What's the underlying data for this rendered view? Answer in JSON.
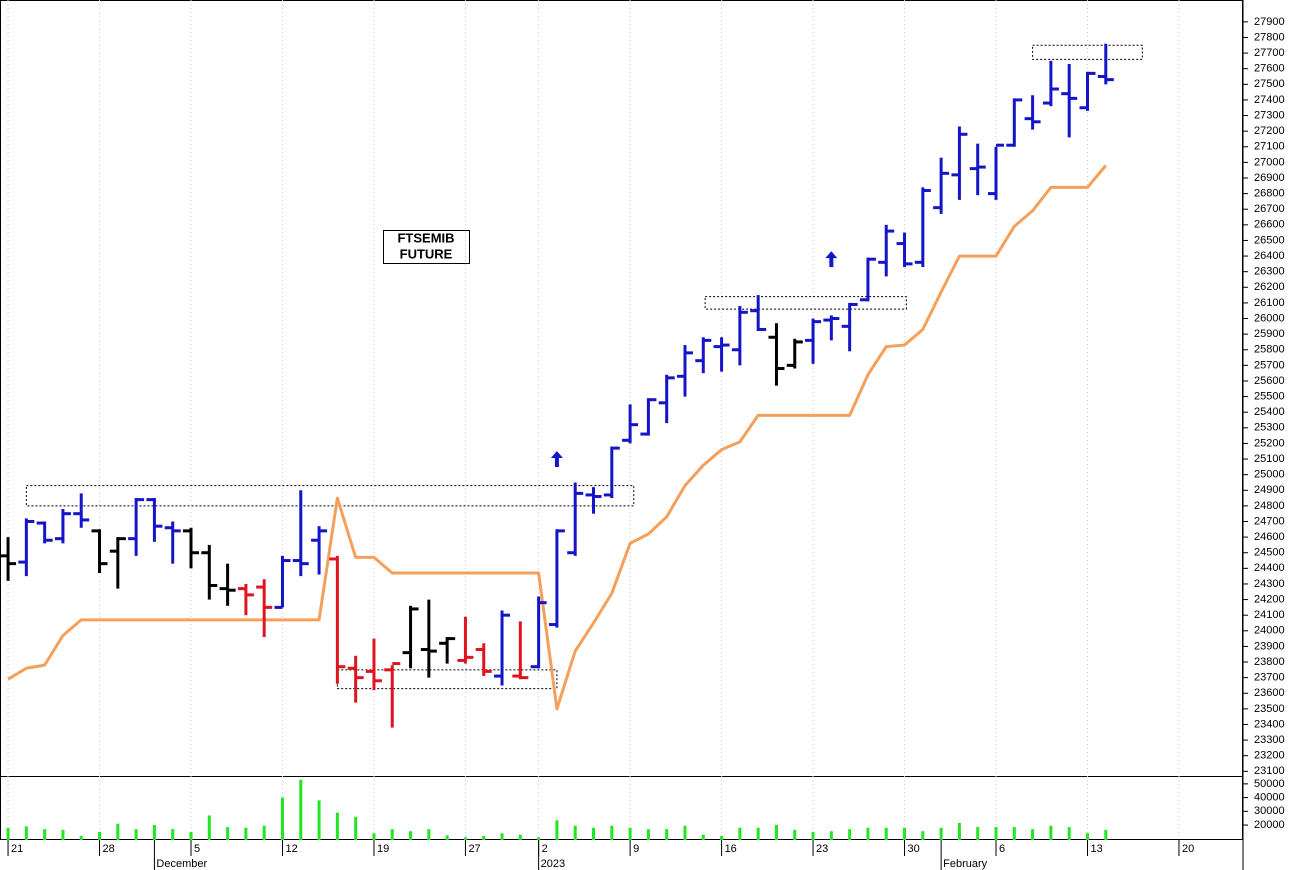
{
  "chart_data": {
    "type": "ohlc",
    "title": [
      "FTSEMIB",
      "FUTURE"
    ],
    "x": [
      0,
      1,
      2,
      3,
      4,
      5,
      6,
      7,
      8,
      9,
      10,
      11,
      12,
      13,
      14,
      15,
      16,
      17,
      18,
      19,
      20,
      21,
      22,
      23,
      24,
      25,
      26,
      27,
      28,
      29,
      30,
      31,
      32,
      33,
      34,
      35,
      36,
      37,
      38,
      39,
      40,
      41,
      42,
      43,
      44,
      45,
      46,
      47,
      48,
      49,
      50,
      51,
      52,
      53,
      54,
      55,
      56,
      57,
      58,
      59,
      60
    ],
    "open": [
      24480,
      24440,
      24690,
      24590,
      24750,
      24640,
      24510,
      24590,
      24840,
      24660,
      24640,
      24500,
      24270,
      24270,
      24280,
      24150,
      24450,
      24580,
      24460,
      23760,
      23740,
      23750,
      23860,
      23880,
      23920,
      23810,
      23880,
      23710,
      23710,
      23770,
      24040,
      24500,
      24870,
      24870,
      25220,
      25260,
      25460,
      25630,
      25730,
      25820,
      25800,
      26050,
      25880,
      25700,
      25860,
      25990,
      25950,
      26120,
      26360,
      26480,
      26360,
      26710,
      26920,
      26960,
      26800,
      27110,
      27280,
      27380,
      27440,
      27350,
      27550
    ],
    "high": [
      24600,
      24720,
      24700,
      24780,
      24880,
      24650,
      24600,
      24850,
      24850,
      24700,
      24660,
      24550,
      24430,
      24300,
      24330,
      24480,
      24900,
      24670,
      24480,
      23840,
      23950,
      23780,
      24160,
      24200,
      23960,
      24090,
      23920,
      24130,
      24060,
      24220,
      24650,
      24950,
      24920,
      25180,
      25450,
      25490,
      25640,
      25830,
      25880,
      25880,
      26080,
      26150,
      25970,
      25870,
      26000,
      26020,
      26100,
      26390,
      26600,
      26550,
      26840,
      27030,
      27230,
      27120,
      27100,
      27410,
      27430,
      27650,
      27630,
      27580,
      27760
    ],
    "low": [
      24320,
      24350,
      24560,
      24560,
      24660,
      24370,
      24270,
      24480,
      24570,
      24430,
      24400,
      24200,
      24160,
      24100,
      23960,
      24150,
      24350,
      24360,
      23660,
      23540,
      23620,
      23380,
      23760,
      23700,
      23790,
      23790,
      23710,
      23650,
      23690,
      23760,
      24020,
      24480,
      24750,
      24850,
      25200,
      25250,
      25330,
      25500,
      25650,
      25660,
      25700,
      25920,
      25570,
      25680,
      25710,
      25860,
      25790,
      26110,
      26270,
      26330,
      26330,
      26670,
      26760,
      26790,
      26760,
      27100,
      27210,
      27360,
      27160,
      27330,
      27500
    ],
    "close": [
      24430,
      24700,
      24580,
      24750,
      24710,
      24430,
      24590,
      24840,
      24670,
      24640,
      24500,
      24290,
      24260,
      24230,
      24150,
      24450,
      24430,
      24640,
      23770,
      23700,
      23680,
      23790,
      24140,
      23870,
      23950,
      23830,
      23740,
      24100,
      23700,
      24180,
      24640,
      24880,
      24860,
      25170,
      25320,
      25480,
      25620,
      25780,
      25860,
      25830,
      26040,
      25930,
      25680,
      25850,
      25980,
      26000,
      26090,
      26380,
      26560,
      26350,
      26820,
      26930,
      27180,
      26970,
      27110,
      27400,
      27260,
      27470,
      27410,
      27570,
      27530
    ],
    "bar_colors": [
      "#000000",
      "#1414c8",
      "#1414c8",
      "#1414c8",
      "#1414c8",
      "#000000",
      "#000000",
      "#1414c8",
      "#1414c8",
      "#1414c8",
      "#000000",
      "#000000",
      "#000000",
      "#e0141e",
      "#e0141e",
      "#1414c8",
      "#1414c8",
      "#1414c8",
      "#e0141e",
      "#e0141e",
      "#e0141e",
      "#e0141e",
      "#000000",
      "#000000",
      "#000000",
      "#e0141e",
      "#e0141e",
      "#1414c8",
      "#e0141e",
      "#1414c8",
      "#1414c8",
      "#1414c8",
      "#1414c8",
      "#1414c8",
      "#1414c8",
      "#1414c8",
      "#1414c8",
      "#1414c8",
      "#1414c8",
      "#1414c8",
      "#1414c8",
      "#1414c8",
      "#000000",
      "#000000",
      "#1414c8",
      "#1414c8",
      "#1414c8",
      "#1414c8",
      "#1414c8",
      "#1414c8",
      "#1414c8",
      "#1414c8",
      "#1414c8",
      "#1414c8",
      "#1414c8",
      "#1414c8",
      "#1414c8",
      "#1414c8",
      "#1414c8",
      "#1414c8",
      "#1414c8"
    ],
    "stop_line": {
      "color": "#f5a05a",
      "values": [
        23690,
        23760,
        23780,
        23970,
        24070,
        24070,
        24070,
        24070,
        24070,
        24070,
        24070,
        24070,
        24070,
        24070,
        24070,
        24070,
        24070,
        24070,
        24850,
        24470,
        24470,
        24370,
        24370,
        24370,
        24370,
        24370,
        24370,
        24370,
        24370,
        24370,
        23500,
        23870,
        24050,
        24240,
        24560,
        24620,
        24730,
        24930,
        25060,
        25160,
        25210,
        25380,
        25380,
        25380,
        25380,
        25380,
        25380,
        25640,
        25820,
        25830,
        25930,
        26170,
        26400,
        26400,
        26400,
        26590,
        26690,
        26840,
        26840,
        26840,
        26980
      ]
    },
    "zones": [
      {
        "x": [
          1,
          34.2
        ],
        "y": [
          24800,
          24930
        ]
      },
      {
        "x": [
          18,
          30
        ],
        "y": [
          23630,
          23750
        ]
      },
      {
        "x": [
          38.1,
          49.1
        ],
        "y": [
          26060,
          26140
        ]
      },
      {
        "x": [
          56,
          62
        ],
        "y": [
          27660,
          27750
        ]
      }
    ],
    "arrows": {
      "color": "#1414c8",
      "x": [
        30,
        45
      ],
      "y": [
        25100,
        26380
      ]
    },
    "xlim": [
      -0.44,
      67.5
    ],
    "xticks": [
      {
        "value": 0,
        "label": "21"
      },
      {
        "value": 5,
        "label": "28"
      },
      {
        "value": 10,
        "label": "5"
      },
      {
        "value": 15,
        "label": "12"
      },
      {
        "value": 20,
        "label": "19"
      },
      {
        "value": 25,
        "label": "27"
      },
      {
        "value": 29,
        "label": "2"
      },
      {
        "value": 34,
        "label": "9"
      },
      {
        "value": 39,
        "label": "16"
      },
      {
        "value": 44,
        "label": "23"
      },
      {
        "value": 49,
        "label": "30"
      },
      {
        "value": 54,
        "label": "6"
      },
      {
        "value": 59,
        "label": "13"
      },
      {
        "value": 64,
        "label": "20"
      }
    ],
    "month_ticks": [
      {
        "value": 8,
        "label": "December"
      },
      {
        "value": 29,
        "label": "2023"
      },
      {
        "value": 51,
        "label": "February"
      }
    ],
    "ylim": [
      23070,
      28040
    ],
    "yticks": [
      23100,
      23200,
      23300,
      23400,
      23500,
      23600,
      23700,
      23800,
      23900,
      24000,
      24100,
      24200,
      24300,
      24400,
      24500,
      24600,
      24700,
      24800,
      24900,
      25000,
      25100,
      25200,
      25300,
      25400,
      25500,
      25600,
      25700,
      25800,
      25900,
      26000,
      26100,
      26200,
      26300,
      26400,
      26500,
      26600,
      26700,
      26800,
      26900,
      27000,
      27100,
      27200,
      27300,
      27400,
      27500,
      27600,
      27700,
      27800,
      27900
    ],
    "volume": {
      "color": "#22e622",
      "ylim": [
        9100,
        55000
      ],
      "yticks": [
        20000,
        30000,
        40000,
        50000
      ],
      "values": [
        18000,
        19000,
        17000,
        16500,
        12000,
        15000,
        21000,
        17000,
        20000,
        17000,
        15000,
        27000,
        18500,
        18000,
        19500,
        40000,
        53000,
        38000,
        29000,
        26000,
        14000,
        17000,
        15500,
        17000,
        12500,
        11000,
        12000,
        14000,
        13000,
        11000,
        23500,
        19500,
        18000,
        19500,
        18000,
        17000,
        17000,
        19500,
        13000,
        12000,
        18000,
        18000,
        20000,
        16500,
        15000,
        15500,
        17000,
        18000,
        18000,
        18000,
        15500,
        18000,
        21500,
        18500,
        18500,
        18500,
        17000,
        19500,
        18500,
        14000,
        16500
      ]
    }
  }
}
